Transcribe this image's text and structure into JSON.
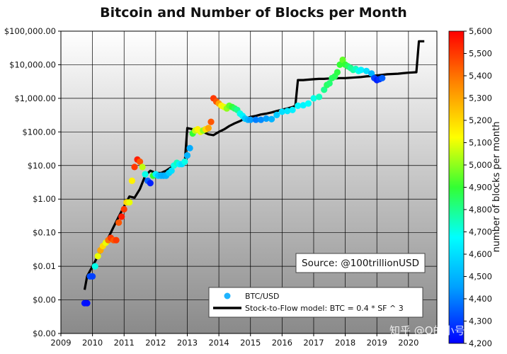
{
  "chart_data": {
    "type": "scatter",
    "title": "Bitcoin and Number of Blocks per Month",
    "xlabel": "",
    "ylabel": "",
    "x_ticks": [
      "2009",
      "2010",
      "2011",
      "2012",
      "2013",
      "2014",
      "2015",
      "2016",
      "2017",
      "2018",
      "2019",
      "2020"
    ],
    "xlim": [
      2009.0,
      2020.9
    ],
    "yscale": "log",
    "ylim": [
      0.0001,
      100000
    ],
    "y_ticks": [
      {
        "value": 0.0001,
        "label": "$0.00"
      },
      {
        "value": 0.001,
        "label": "$0.00"
      },
      {
        "value": 0.01,
        "label": "$0.01"
      },
      {
        "value": 0.1,
        "label": "$0.10"
      },
      {
        "value": 1,
        "label": "$1.00"
      },
      {
        "value": 10,
        "label": "$10.00"
      },
      {
        "value": 100,
        "label": "$100.00"
      },
      {
        "value": 1000,
        "label": "$1,000.00"
      },
      {
        "value": 10000,
        "label": "$10,000.00"
      },
      {
        "value": 100000,
        "label": "$100,000.00"
      }
    ],
    "grid": true,
    "legend": {
      "position": "bottom-center",
      "entries": [
        "BTC/USD",
        "Stock-to-Flow model: BTC = 0.4 * SF ^ 3"
      ]
    },
    "annotation": "Source: @100trillionUSD",
    "colorbar": {
      "label": "number of blocks per month",
      "range": [
        4200,
        5600
      ],
      "ticks": [
        "4,200",
        "4,300",
        "4,400",
        "4,500",
        "4,600",
        "4,700",
        "4,800",
        "4,900",
        "5,000",
        "5,100",
        "5,200",
        "5,300",
        "5,400",
        "5,500",
        "5,600"
      ]
    },
    "series": [
      {
        "name": "BTC/USD",
        "points": [
          [
            2009.75,
            0.0008,
            4230
          ],
          [
            2009.83,
            0.0008,
            4220
          ],
          [
            2009.92,
            0.005,
            4320
          ],
          [
            2010.0,
            0.005,
            4300
          ],
          [
            2010.08,
            0.01,
            4700
          ],
          [
            2010.17,
            0.02,
            5100
          ],
          [
            2010.25,
            0.03,
            5300
          ],
          [
            2010.33,
            0.04,
            5200
          ],
          [
            2010.42,
            0.05,
            5100
          ],
          [
            2010.5,
            0.06,
            5400
          ],
          [
            2010.58,
            0.07,
            5500
          ],
          [
            2010.67,
            0.06,
            5450
          ],
          [
            2010.75,
            0.06,
            5500
          ],
          [
            2010.83,
            0.2,
            5450
          ],
          [
            2010.92,
            0.3,
            5550
          ],
          [
            2011.0,
            0.5,
            5500
          ],
          [
            2011.08,
            0.8,
            5200
          ],
          [
            2011.17,
            0.8,
            5100
          ],
          [
            2011.25,
            3.5,
            5150
          ],
          [
            2011.33,
            9,
            5500
          ],
          [
            2011.42,
            15,
            5550
          ],
          [
            2011.5,
            13,
            5450
          ],
          [
            2011.58,
            9,
            5050
          ],
          [
            2011.67,
            5.5,
            4700
          ],
          [
            2011.75,
            3.5,
            4350
          ],
          [
            2011.83,
            3,
            4250
          ],
          [
            2011.92,
            5,
            4900
          ],
          [
            2012.0,
            5.5,
            4650
          ],
          [
            2012.08,
            5,
            4550
          ],
          [
            2012.17,
            5,
            4500
          ],
          [
            2012.25,
            5,
            4480
          ],
          [
            2012.33,
            5,
            4500
          ],
          [
            2012.42,
            6,
            4560
          ],
          [
            2012.5,
            7,
            4600
          ],
          [
            2012.58,
            10,
            4700
          ],
          [
            2012.67,
            12,
            4750
          ],
          [
            2012.75,
            11,
            4650
          ],
          [
            2012.83,
            11,
            4600
          ],
          [
            2012.92,
            13,
            4700
          ],
          [
            2013.0,
            20,
            4500
          ],
          [
            2013.08,
            33,
            4480
          ],
          [
            2013.17,
            90,
            4900
          ],
          [
            2013.25,
            110,
            5050
          ],
          [
            2013.33,
            120,
            5150
          ],
          [
            2013.42,
            100,
            5100
          ],
          [
            2013.5,
            110,
            5000
          ],
          [
            2013.58,
            120,
            5200
          ],
          [
            2013.67,
            130,
            5300
          ],
          [
            2013.75,
            200,
            5450
          ],
          [
            2013.83,
            1000,
            5500
          ],
          [
            2013.92,
            800,
            5450
          ],
          [
            2014.0,
            700,
            5300
          ],
          [
            2014.08,
            600,
            5150
          ],
          [
            2014.17,
            550,
            5100
          ],
          [
            2014.25,
            500,
            5000
          ],
          [
            2014.33,
            600,
            4950
          ],
          [
            2014.42,
            550,
            4900
          ],
          [
            2014.5,
            500,
            4850
          ],
          [
            2014.58,
            450,
            4800
          ],
          [
            2014.67,
            350,
            4700
          ],
          [
            2014.75,
            300,
            4650
          ],
          [
            2014.83,
            250,
            4550
          ],
          [
            2014.92,
            230,
            4500
          ],
          [
            2015.0,
            230,
            4450
          ],
          [
            2015.17,
            230,
            4400
          ],
          [
            2015.33,
            230,
            4420
          ],
          [
            2015.5,
            250,
            4450
          ],
          [
            2015.67,
            240,
            4500
          ],
          [
            2015.83,
            320,
            4550
          ],
          [
            2016.0,
            400,
            4600
          ],
          [
            2016.17,
            420,
            4620
          ],
          [
            2016.33,
            450,
            4640
          ],
          [
            2016.5,
            600,
            4660
          ],
          [
            2016.67,
            620,
            4650
          ],
          [
            2016.83,
            700,
            4680
          ],
          [
            2017.0,
            1000,
            4700
          ],
          [
            2017.17,
            1100,
            4750
          ],
          [
            2017.33,
            1800,
            4800
          ],
          [
            2017.42,
            2500,
            4850
          ],
          [
            2017.5,
            2800,
            4830
          ],
          [
            2017.58,
            4000,
            4850
          ],
          [
            2017.67,
            4500,
            4860
          ],
          [
            2017.75,
            6000,
            4880
          ],
          [
            2017.83,
            10000,
            4900
          ],
          [
            2017.92,
            14000,
            4950
          ],
          [
            2018.0,
            10000,
            4900
          ],
          [
            2018.08,
            9000,
            4850
          ],
          [
            2018.17,
            8000,
            4800
          ],
          [
            2018.25,
            7000,
            4780
          ],
          [
            2018.33,
            7500,
            4750
          ],
          [
            2018.42,
            6500,
            4700
          ],
          [
            2018.5,
            7000,
            4650
          ],
          [
            2018.67,
            6500,
            4600
          ],
          [
            2018.83,
            5500,
            4500
          ],
          [
            2018.92,
            4000,
            4300
          ],
          [
            2019.0,
            3500,
            4250
          ],
          [
            2019.08,
            3700,
            4280
          ],
          [
            2019.17,
            4000,
            4350
          ]
        ]
      },
      {
        "name": "Stock-to-Flow model: BTC = 0.4 * SF ^ 3",
        "points": [
          [
            2009.75,
            0.002
          ],
          [
            2009.83,
            0.005
          ],
          [
            2010.0,
            0.01
          ],
          [
            2010.17,
            0.02
          ],
          [
            2010.33,
            0.04
          ],
          [
            2010.5,
            0.07
          ],
          [
            2010.67,
            0.15
          ],
          [
            2010.83,
            0.3
          ],
          [
            2011.0,
            0.6
          ],
          [
            2011.17,
            1.2
          ],
          [
            2011.33,
            1.1
          ],
          [
            2011.5,
            2
          ],
          [
            2011.67,
            5
          ],
          [
            2011.83,
            7
          ],
          [
            2012.0,
            6
          ],
          [
            2012.17,
            6
          ],
          [
            2012.33,
            7
          ],
          [
            2012.5,
            9
          ],
          [
            2012.75,
            11
          ],
          [
            2012.92,
            12
          ],
          [
            2013.0,
            130
          ],
          [
            2013.17,
            120
          ],
          [
            2013.33,
            110
          ],
          [
            2013.5,
            100
          ],
          [
            2013.67,
            85
          ],
          [
            2013.83,
            80
          ],
          [
            2014.0,
            100
          ],
          [
            2014.17,
            120
          ],
          [
            2014.33,
            150
          ],
          [
            2014.5,
            180
          ],
          [
            2014.67,
            210
          ],
          [
            2014.83,
            250
          ],
          [
            2015.0,
            280
          ],
          [
            2015.17,
            300
          ],
          [
            2015.33,
            330
          ],
          [
            2015.5,
            350
          ],
          [
            2015.67,
            380
          ],
          [
            2015.83,
            420
          ],
          [
            2016.0,
            460
          ],
          [
            2016.17,
            500
          ],
          [
            2016.33,
            550
          ],
          [
            2016.42,
            600
          ],
          [
            2016.5,
            3500
          ],
          [
            2016.67,
            3500
          ],
          [
            2016.83,
            3600
          ],
          [
            2017.0,
            3700
          ],
          [
            2017.17,
            3800
          ],
          [
            2017.33,
            3800
          ],
          [
            2017.5,
            3900
          ],
          [
            2017.67,
            3900
          ],
          [
            2017.83,
            4000
          ],
          [
            2018.0,
            4000
          ],
          [
            2018.17,
            4100
          ],
          [
            2018.33,
            4200
          ],
          [
            2018.5,
            4300
          ],
          [
            2018.67,
            4500
          ],
          [
            2018.83,
            4600
          ],
          [
            2019.0,
            4800
          ],
          [
            2019.17,
            5000
          ],
          [
            2019.33,
            5200
          ],
          [
            2019.5,
            5300
          ],
          [
            2019.67,
            5400
          ],
          [
            2019.83,
            5600
          ],
          [
            2020.0,
            5800
          ],
          [
            2020.25,
            6000
          ],
          [
            2020.33,
            50000
          ],
          [
            2020.5,
            50000
          ]
        ]
      }
    ]
  },
  "watermark": "知乎 @Q的小号"
}
